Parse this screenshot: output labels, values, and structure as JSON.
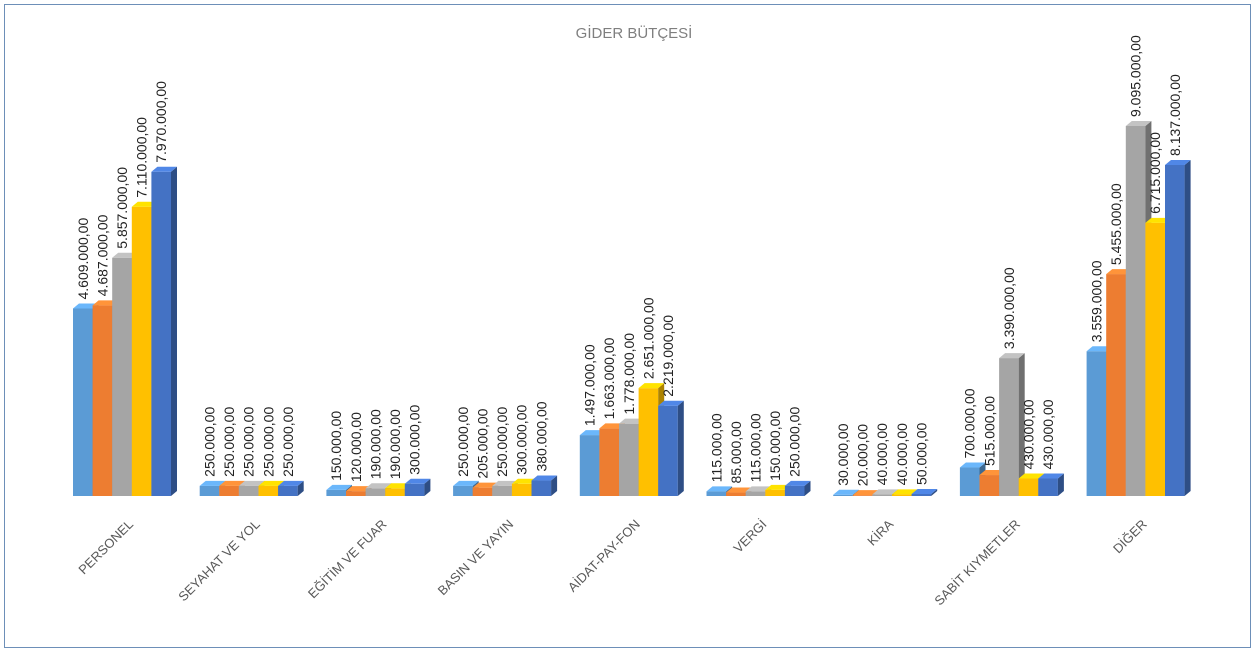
{
  "chart_data": {
    "type": "bar",
    "title": "GİDER BÜTÇESİ",
    "xlabel": "",
    "ylabel": "",
    "ylim": [
      0,
      9500000
    ],
    "grid": false,
    "legend": "none",
    "style": "3d-clustered-column",
    "categories": [
      "PERSONEL",
      "SEYAHAT VE YOL",
      "EĞİTİM VE FUAR",
      "BASIN VE YAYIN",
      "AİDAT-PAY-FON",
      "VERGİ",
      "KİRA",
      "SABİT KIYMETLER",
      "DİĞER"
    ],
    "series": [
      {
        "color": "#5b9bd5",
        "values": [
          4609000,
          250000,
          150000,
          250000,
          1497000,
          115000,
          30000,
          700000,
          3559000
        ],
        "labels": [
          "4.609.000,00",
          "250.000,00",
          "150.000,00",
          "250.000,00",
          "1.497.000,00",
          "115.000,00",
          "30.000,00",
          "700.000,00",
          "3.559.000,00"
        ]
      },
      {
        "color": "#ed7d31",
        "values": [
          4687000,
          250000,
          120000,
          205000,
          1663000,
          85000,
          20000,
          515000,
          5455000
        ],
        "labels": [
          "4.687.000,00",
          "250.000,00",
          "120.000,00",
          "205.000,00",
          "1.663.000,00",
          "85.000,00",
          "20.000,00",
          "515.000,00",
          "5.455.000,00"
        ]
      },
      {
        "color": "#a5a5a5",
        "values": [
          5857000,
          250000,
          190000,
          250000,
          1778000,
          115000,
          40000,
          3390000,
          9095000
        ],
        "labels": [
          "5.857.000,00",
          "250.000,00",
          "190.000,00",
          "250.000,00",
          "1.778.000,00",
          "115.000,00",
          "40.000,00",
          "3.390.000,00",
          "9.095.000,00"
        ]
      },
      {
        "color": "#ffc000",
        "values": [
          7110000,
          250000,
          190000,
          300000,
          2651000,
          150000,
          40000,
          430000,
          6715000
        ],
        "labels": [
          "7.110.000,00",
          "250.000,00",
          "190.000,00",
          "300.000,00",
          "2.651.000,00",
          "150.000,00",
          "40.000,00",
          "430.000,00",
          "6.715.000,00"
        ]
      },
      {
        "color": "#4472c4",
        "values": [
          7970000,
          250000,
          300000,
          380000,
          2219000,
          250000,
          50000,
          430000,
          8137000
        ],
        "labels": [
          "7.970.000,00",
          "250.000,00",
          "300.000,00",
          "380.000,00",
          "2.219.000,00",
          "250.000,00",
          "50.000,00",
          "430.000,00",
          "8.137.000,00"
        ]
      }
    ]
  }
}
